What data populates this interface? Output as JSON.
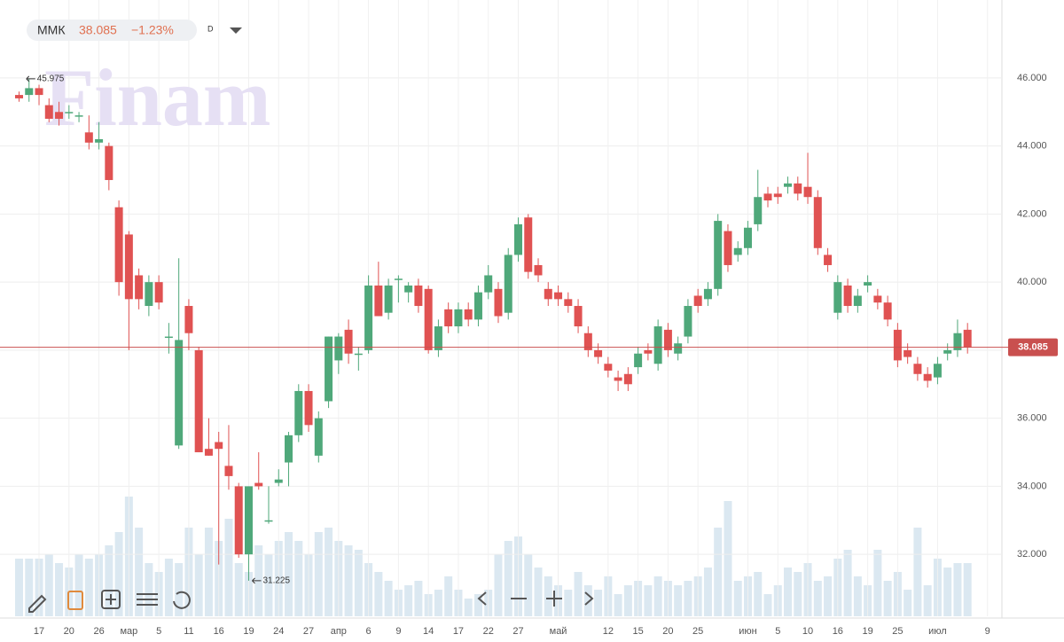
{
  "header": {
    "ticker": "ММК",
    "change": "−1.23%",
    "interval": "D",
    "watermark": "Finam"
  },
  "chart_data": {
    "type": "candlestick",
    "categories": [
      null,
      null,
      "17",
      null,
      null,
      "20",
      null,
      null,
      "26",
      null,
      null,
      "мар",
      null,
      null,
      "5",
      null,
      null,
      "11",
      null,
      null,
      "16",
      null,
      null,
      "19",
      null,
      null,
      "24",
      null,
      null,
      "27",
      null,
      null,
      "апр",
      null,
      null,
      "6",
      null,
      null,
      "9",
      null,
      null,
      "14",
      null,
      null,
      "17",
      null,
      null,
      "22",
      null,
      null,
      "27",
      null,
      null,
      null,
      "май",
      null,
      null,
      null,
      null,
      "12",
      null,
      null,
      "15",
      null,
      null,
      "20",
      null,
      null,
      "25",
      null,
      null,
      null,
      null,
      "июн",
      null,
      null,
      "5",
      null,
      null,
      "10",
      null,
      null,
      "16",
      null,
      null,
      "19",
      null,
      null,
      "25",
      null,
      null,
      null,
      "июл",
      null,
      null,
      null,
      null,
      "9"
    ],
    "open": [
      45.5,
      45.5,
      45.7,
      45.2,
      45.0,
      45.0,
      44.9,
      44.4,
      44.1,
      44.0,
      42.2,
      41.4,
      40.2,
      39.3,
      40.0,
      38.4,
      35.2,
      39.3,
      38.0,
      35.1,
      35.3,
      34.6,
      34.0,
      32.0,
      34.1,
      33.0,
      34.1,
      34.7,
      35.5,
      36.8,
      34.9,
      36.5,
      37.7,
      38.6,
      37.9,
      38.0,
      39.9,
      39.1,
      40.1,
      39.7,
      39.9,
      39.8,
      38.0,
      39.2,
      38.7,
      39.2,
      38.9,
      39.7,
      39.8,
      39.1,
      40.8,
      41.9,
      40.5,
      39.8,
      39.7,
      39.5,
      39.3,
      38.5,
      38.0,
      37.6,
      37.2,
      37.3,
      37.5,
      38.0,
      37.6,
      38.6,
      37.9,
      38.4,
      39.6,
      39.5,
      39.8,
      41.5,
      40.8,
      41.0,
      41.7,
      42.6,
      42.6,
      42.8,
      42.9,
      42.8,
      42.5,
      40.8,
      39.1,
      39.9,
      39.3,
      39.9,
      39.6,
      39.4,
      38.6,
      38.0,
      37.6,
      37.3,
      37.2,
      37.9,
      38.0,
      38.6,
      null,
      null
    ],
    "high": [
      45.6,
      45.975,
      45.8,
      45.4,
      45.3,
      45.2,
      45.0,
      44.9,
      44.7,
      44.1,
      42.4,
      41.5,
      40.4,
      40.2,
      40.2,
      38.8,
      40.7,
      39.5,
      38.1,
      36.0,
      35.6,
      35.8,
      34.1,
      34.0,
      35.0,
      34.0,
      34.5,
      35.6,
      37.0,
      37.0,
      36.2,
      38.4,
      38.5,
      38.9,
      38.1,
      40.2,
      40.6,
      40.1,
      40.2,
      40.0,
      40.1,
      39.9,
      38.9,
      39.4,
      39.4,
      39.4,
      39.9,
      40.5,
      40.0,
      41.0,
      41.9,
      42.0,
      40.7,
      40.0,
      39.9,
      39.7,
      39.5,
      38.7,
      38.2,
      37.8,
      37.4,
      37.5,
      38.1,
      38.2,
      38.9,
      38.8,
      38.4,
      39.5,
      39.8,
      40.0,
      42.0,
      41.7,
      41.2,
      41.8,
      43.3,
      42.8,
      42.8,
      43.1,
      43.1,
      43.8,
      42.7,
      41.0,
      40.2,
      40.1,
      39.8,
      40.2,
      39.8,
      39.6,
      38.8,
      38.2,
      37.8,
      37.5,
      37.8,
      38.2,
      38.9,
      38.8,
      null,
      null
    ],
    "low": [
      45.3,
      45.3,
      45.2,
      44.7,
      44.6,
      44.8,
      44.7,
      43.9,
      43.9,
      42.7,
      39.6,
      38.0,
      39.2,
      39.0,
      39.2,
      37.9,
      35.1,
      38.0,
      35.0,
      34.9,
      31.7,
      33.9,
      31.9,
      31.225,
      33.9,
      32.9,
      34.0,
      34.0,
      35.3,
      35.6,
      34.7,
      36.3,
      37.3,
      37.6,
      37.4,
      37.9,
      39.0,
      38.9,
      39.4,
      39.4,
      39.1,
      37.9,
      37.8,
      38.5,
      38.5,
      38.7,
      38.7,
      39.5,
      38.8,
      38.9,
      40.6,
      40.1,
      40.0,
      39.3,
      39.3,
      39.1,
      38.5,
      37.8,
      37.6,
      37.2,
      36.8,
      36.8,
      37.3,
      37.7,
      37.4,
      37.8,
      37.7,
      38.2,
      39.1,
      39.3,
      39.6,
      40.3,
      40.6,
      40.8,
      41.5,
      42.2,
      42.3,
      42.6,
      42.4,
      42.3,
      40.8,
      40.3,
      38.9,
      39.1,
      39.1,
      39.7,
      39.2,
      38.7,
      37.5,
      37.6,
      37.1,
      36.9,
      37.0,
      37.7,
      37.8,
      37.9,
      null,
      null
    ],
    "close": [
      45.4,
      45.7,
      45.5,
      44.8,
      44.8,
      45.0,
      44.9,
      44.1,
      44.2,
      43.0,
      40.0,
      39.5,
      39.5,
      40.0,
      39.4,
      38.4,
      38.3,
      38.5,
      35.0,
      34.9,
      35.1,
      34.3,
      32.0,
      34.0,
      34.0,
      33.0,
      34.2,
      35.5,
      36.8,
      35.8,
      36.0,
      38.4,
      38.4,
      37.9,
      37.9,
      39.9,
      39.0,
      39.9,
      40.1,
      39.9,
      39.3,
      38.0,
      38.7,
      38.7,
      39.2,
      38.9,
      39.7,
      40.2,
      39.0,
      40.8,
      41.7,
      40.3,
      40.2,
      39.5,
      39.5,
      39.3,
      38.7,
      38.0,
      37.8,
      37.4,
      37.1,
      37.0,
      37.9,
      37.9,
      38.7,
      38.0,
      38.2,
      39.3,
      39.3,
      39.8,
      41.8,
      40.5,
      41.0,
      41.6,
      42.5,
      42.4,
      42.5,
      42.9,
      42.6,
      42.5,
      41.0,
      40.5,
      40.0,
      39.3,
      39.6,
      40.0,
      39.4,
      38.9,
      37.7,
      37.8,
      37.3,
      37.1,
      37.6,
      38.0,
      38.5,
      38.085,
      null,
      null
    ],
    "volume": [
      65,
      65,
      65,
      70,
      60,
      55,
      70,
      65,
      70,
      80,
      95,
      135,
      100,
      60,
      50,
      65,
      60,
      100,
      70,
      100,
      85,
      110,
      60,
      50,
      80,
      70,
      85,
      95,
      85,
      70,
      95,
      100,
      85,
      80,
      75,
      60,
      50,
      40,
      30,
      35,
      40,
      25,
      30,
      45,
      30,
      20,
      25,
      30,
      70,
      85,
      90,
      70,
      55,
      45,
      35,
      30,
      50,
      35,
      30,
      45,
      25,
      35,
      40,
      35,
      45,
      40,
      35,
      40,
      45,
      55,
      100,
      130,
      40,
      45,
      50,
      25,
      35,
      55,
      50,
      60,
      40,
      45,
      65,
      75,
      45,
      35,
      75,
      40,
      50,
      30,
      100,
      35,
      65,
      55,
      60,
      60,
      null,
      null
    ],
    "up_color": "#4fa87a",
    "down_color": "#e05252",
    "volume_color": "#dbe8f1",
    "price_line_color": "#c9504f",
    "ylim": [
      30.18,
      48.03
    ],
    "yticks": [
      {
        "value": 32,
        "label": "32.000"
      },
      {
        "value": 34,
        "label": "34.000"
      },
      {
        "value": 36,
        "label": "36.000"
      },
      {
        "value": 38,
        "label": "38.000"
      },
      {
        "value": 40,
        "label": "40.000"
      },
      {
        "value": 42,
        "label": "42.000"
      },
      {
        "value": 44,
        "label": "44.000"
      },
      {
        "value": 46,
        "label": "46.000"
      }
    ],
    "grid": true
  }
}
